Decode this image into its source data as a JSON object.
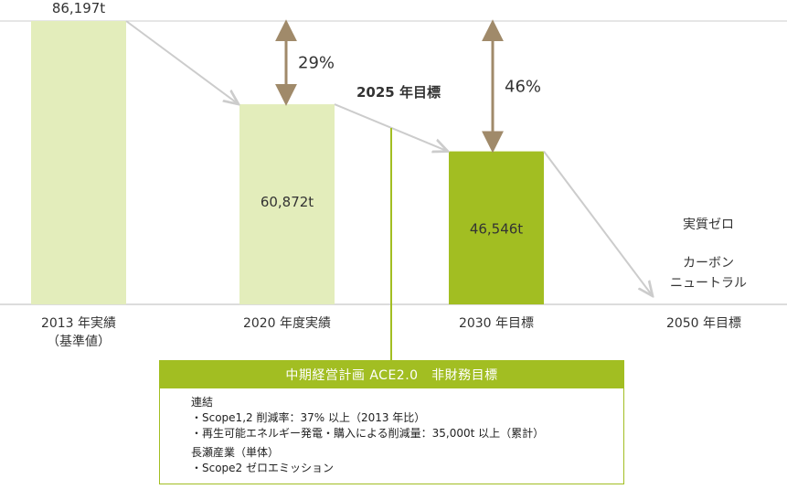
{
  "chart_data": {
    "type": "bar",
    "categories": [
      "2013 年実績\n（基準値）",
      "2020 年度実績",
      "2030 年目標",
      "2050 年目標"
    ],
    "values": [
      86197,
      60872,
      46546,
      0
    ],
    "value_labels": [
      "86,197t",
      "60,872t",
      "46,546t",
      ""
    ],
    "ylim": [
      0,
      86197
    ],
    "colors": [
      "#e3edbb",
      "#e3edbb",
      "#a2be22"
    ],
    "reductions": [
      {
        "label": "29%",
        "from_index": 0,
        "to_index": 1
      },
      {
        "label": "46%",
        "from_index": 0,
        "to_index": 2
      }
    ],
    "zero_label_lines": [
      "実質ゼロ",
      "カーボン",
      "ニュートラル"
    ],
    "milestone_label": "2025 年目標"
  },
  "colors": {
    "accent": "#a2be22",
    "light_bar": "#e3edbb",
    "arrow_brown": "#a08a6a",
    "trend_gray": "#cccccc"
  },
  "target_box": {
    "title": "中期経営計画 ACE2.0　非財務目標",
    "groups": [
      {
        "heading": "連結",
        "items": [
          "・Scope1,2 削減率：37% 以上（2013 年比）",
          "・再生可能エネルギー発電・購入による削減量：35,000t 以上（累計）"
        ]
      },
      {
        "heading": "長瀬産業（単体）",
        "items": [
          "・Scope2 ゼロエミッション"
        ]
      }
    ]
  }
}
